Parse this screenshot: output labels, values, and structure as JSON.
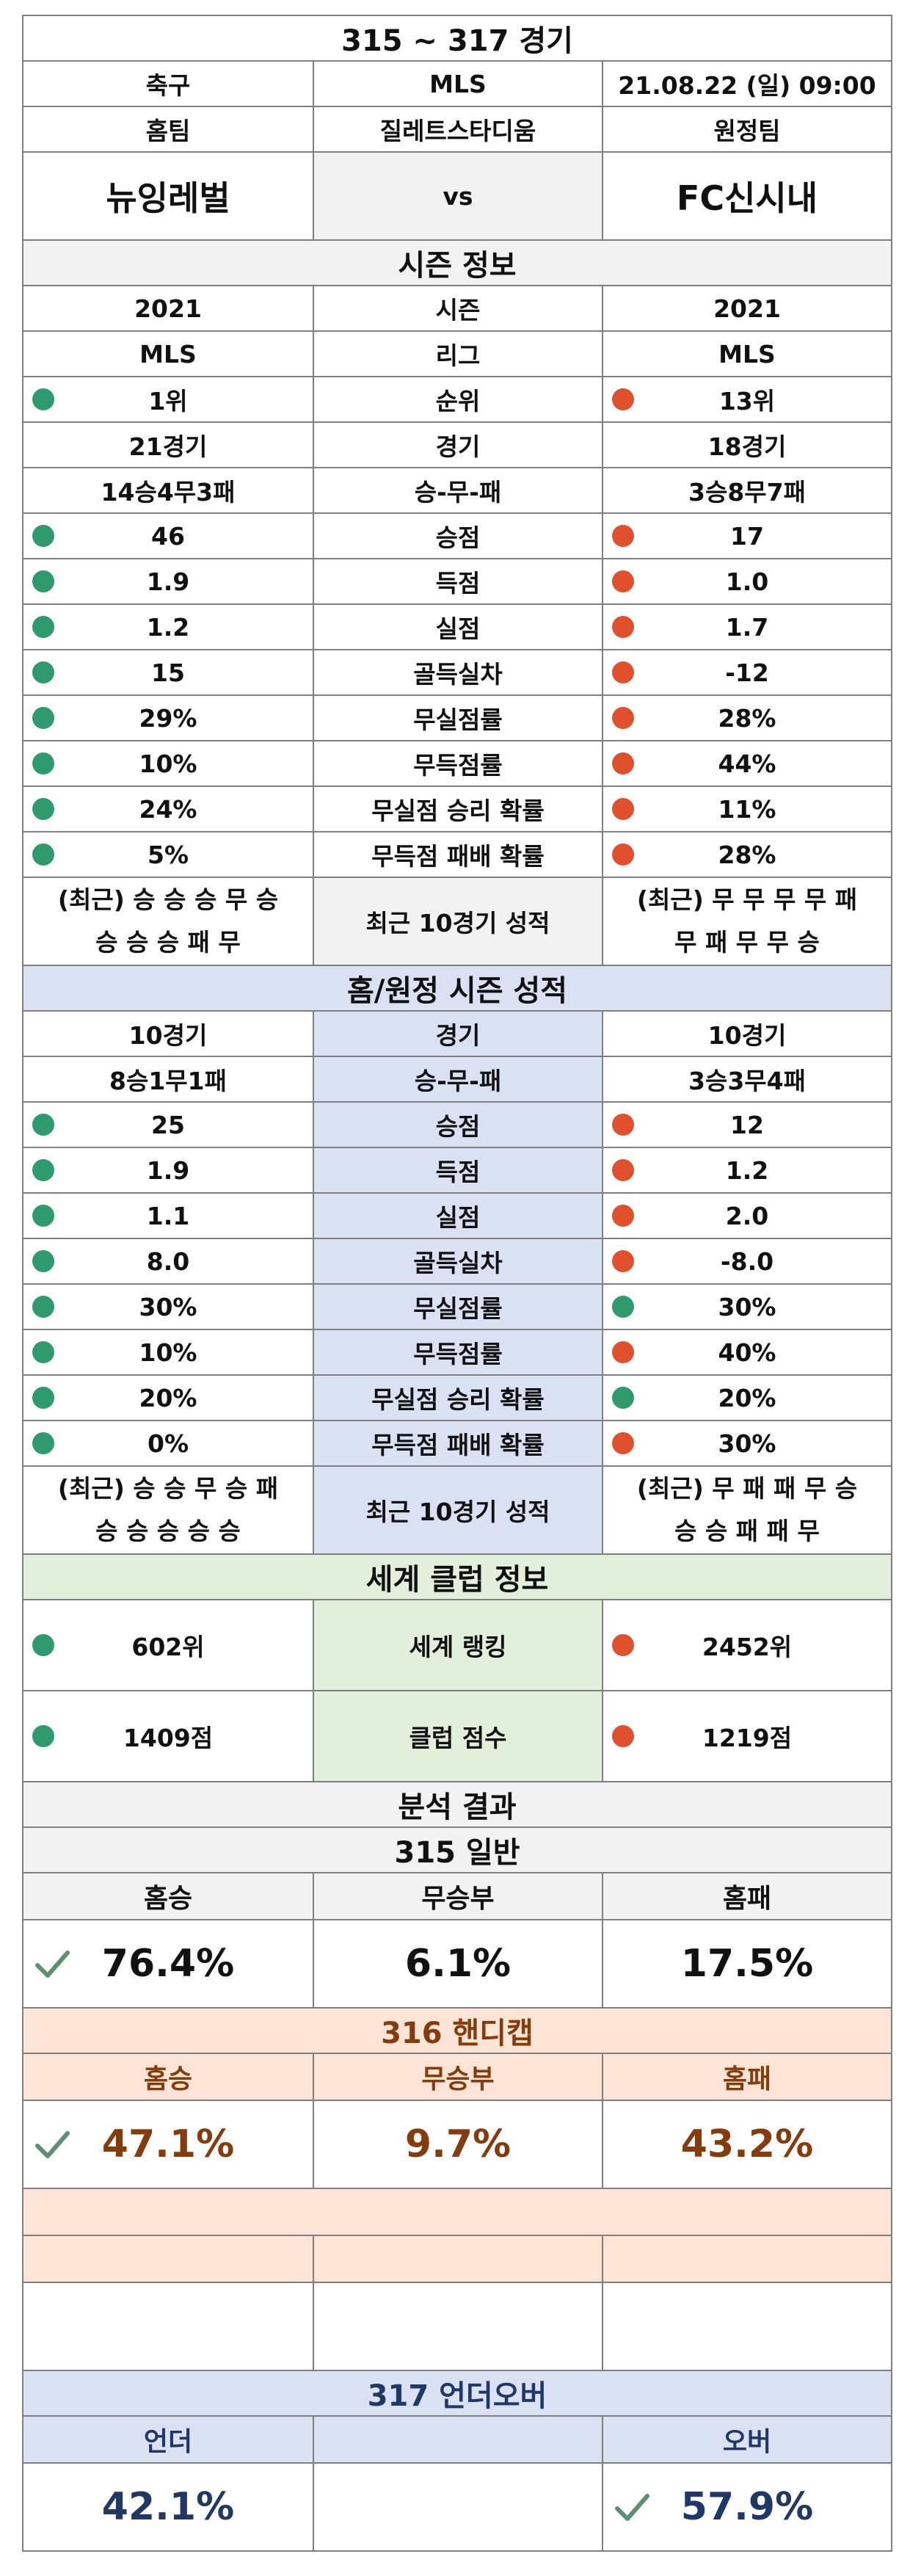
{
  "title": "315 ~ 317 경기",
  "match": {
    "sport": "축구",
    "league": "MLS",
    "datetime": "21.08.22 (일) 09:00",
    "home_label": "홈팀",
    "stadium": "질레트스타디움",
    "away_label": "원정팀",
    "home_team": "뉴잉레벌",
    "vs": "vs",
    "away_team": "FC신시내"
  },
  "season": {
    "header": "시즌 정보",
    "recent_label": "최근 10경기 성적",
    "recent_home": [
      "(최근) 승 승 승 무 승",
      "승 승 승 패 무"
    ],
    "recent_away": [
      "(최근) 무 무 무 무 패",
      "무 패 무 무 승"
    ],
    "rows": [
      {
        "label": "시즌",
        "home": "2021",
        "away": "2021",
        "home_dot": "",
        "away_dot": ""
      },
      {
        "label": "리그",
        "home": "MLS",
        "away": "MLS",
        "home_dot": "",
        "away_dot": ""
      },
      {
        "label": "순위",
        "home": "1위",
        "away": "13위",
        "home_dot": "green",
        "away_dot": "red"
      },
      {
        "label": "경기",
        "home": "21경기",
        "away": "18경기",
        "home_dot": "",
        "away_dot": ""
      },
      {
        "label": "승-무-패",
        "home": "14승4무3패",
        "away": "3승8무7패",
        "home_dot": "",
        "away_dot": ""
      },
      {
        "label": "승점",
        "home": "46",
        "away": "17",
        "home_dot": "green",
        "away_dot": "red"
      },
      {
        "label": "득점",
        "home": "1.9",
        "away": "1.0",
        "home_dot": "green",
        "away_dot": "red"
      },
      {
        "label": "실점",
        "home": "1.2",
        "away": "1.7",
        "home_dot": "green",
        "away_dot": "red"
      },
      {
        "label": "골득실차",
        "home": "15",
        "away": "-12",
        "home_dot": "green",
        "away_dot": "red"
      },
      {
        "label": "무실점률",
        "home": "29%",
        "away": "28%",
        "home_dot": "green",
        "away_dot": "red"
      },
      {
        "label": "무득점률",
        "home": "10%",
        "away": "44%",
        "home_dot": "green",
        "away_dot": "red"
      },
      {
        "label": "무실점 승리 확률",
        "home": "24%",
        "away": "11%",
        "home_dot": "green",
        "away_dot": "red"
      },
      {
        "label": "무득점 패배 확률",
        "home": "5%",
        "away": "28%",
        "home_dot": "green",
        "away_dot": "red"
      }
    ]
  },
  "homeaway": {
    "header": "홈/원정 시즌 성적",
    "recent_label": "최근 10경기 성적",
    "recent_home": [
      "(최근) 승 승 무 승 패",
      "승 승 승 승 승"
    ],
    "recent_away": [
      "(최근) 무 패 패 무 승",
      "승 승 패 패 무"
    ],
    "rows": [
      {
        "label": "경기",
        "home": "10경기",
        "away": "10경기",
        "home_dot": "",
        "away_dot": ""
      },
      {
        "label": "승-무-패",
        "home": "8승1무1패",
        "away": "3승3무4패",
        "home_dot": "",
        "away_dot": ""
      },
      {
        "label": "승점",
        "home": "25",
        "away": "12",
        "home_dot": "green",
        "away_dot": "red"
      },
      {
        "label": "득점",
        "home": "1.9",
        "away": "1.2",
        "home_dot": "green",
        "away_dot": "red"
      },
      {
        "label": "실점",
        "home": "1.1",
        "away": "2.0",
        "home_dot": "green",
        "away_dot": "red"
      },
      {
        "label": "골득실차",
        "home": "8.0",
        "away": "-8.0",
        "home_dot": "green",
        "away_dot": "red"
      },
      {
        "label": "무실점률",
        "home": "30%",
        "away": "30%",
        "home_dot": "green",
        "away_dot": "green"
      },
      {
        "label": "무득점률",
        "home": "10%",
        "away": "40%",
        "home_dot": "green",
        "away_dot": "red"
      },
      {
        "label": "무실점 승리 확률",
        "home": "20%",
        "away": "20%",
        "home_dot": "green",
        "away_dot": "green"
      },
      {
        "label": "무득점 패배 확률",
        "home": "0%",
        "away": "30%",
        "home_dot": "green",
        "away_dot": "red"
      }
    ]
  },
  "world": {
    "header": "세계 클럽 정보",
    "rows": [
      {
        "label": "세계 랭킹",
        "home": "602위",
        "away": "2452위",
        "home_dot": "green",
        "away_dot": "red"
      },
      {
        "label": "클럽 점수",
        "home": "1409점",
        "away": "1219점",
        "home_dot": "green",
        "away_dot": "red"
      }
    ]
  },
  "analysis": {
    "header": "분석 결과",
    "general": {
      "title": "315 일반",
      "labels": [
        "홈승",
        "무승부",
        "홈패"
      ],
      "values": [
        "76.4%",
        "6.1%",
        "17.5%"
      ],
      "check_index": 0
    },
    "handicap": {
      "title": "316 핸디캡",
      "labels": [
        "홈승",
        "무승부",
        "홈패"
      ],
      "values": [
        "47.1%",
        "9.7%",
        "43.2%"
      ],
      "check_index": 0
    },
    "underover": {
      "title": "317 언더오버",
      "labels": [
        "언더",
        "",
        "오버"
      ],
      "values": [
        "42.1%",
        "",
        "57.9%"
      ],
      "check_index": 2
    }
  },
  "colors": {
    "green_dot": "#2f9a6e",
    "red_dot": "#e0502d",
    "check": "#5e8f73",
    "blue_band": "#d9e1f2",
    "green_band": "#e2efda",
    "peach_band": "#fce4d6",
    "navy_text": "#203864",
    "brown_text": "#843c0c"
  },
  "icons": {
    "good": "green-circle-icon",
    "bad": "red-circle-icon",
    "pick": "checkmark-icon"
  }
}
